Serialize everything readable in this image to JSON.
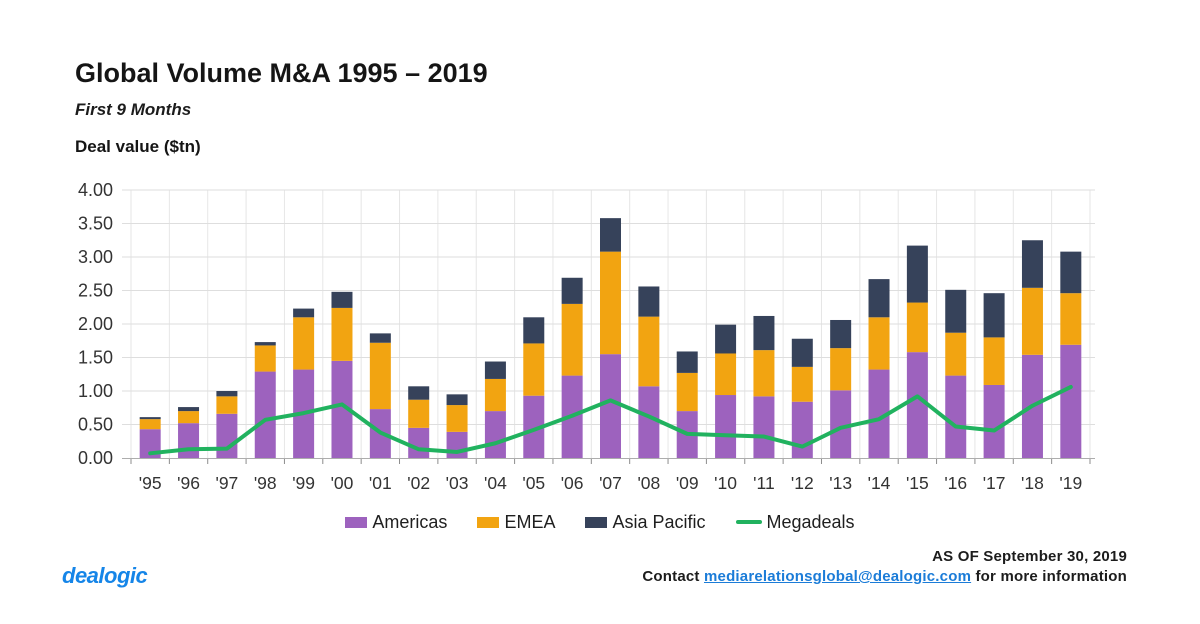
{
  "header": {
    "title": "Global Volume M&A 1995 – 2019",
    "subtitle": "First 9 Months",
    "axis_caption": "Deal value ($tn)"
  },
  "chart_data": {
    "type": "bar",
    "stacked": true,
    "title": "Global Volume M&A 1995 – 2019",
    "subtitle": "First 9 Months",
    "ylabel": "Deal value ($tn)",
    "xlabel": "",
    "ylim": [
      0,
      4
    ],
    "ytick_step": 0.5,
    "ytick_labels": [
      "0.00",
      "0.50",
      "1.00",
      "1.50",
      "2.00",
      "2.50",
      "3.00",
      "3.50",
      "4.00"
    ],
    "grid": true,
    "legend_position": "bottom",
    "categories": [
      "'95",
      "'96",
      "'97",
      "'98",
      "'99",
      "'00",
      "'01",
      "'02",
      "'03",
      "'04",
      "'05",
      "'06",
      "'07",
      "'08",
      "'09",
      "'10",
      "'11",
      "'12",
      "'13",
      "'14",
      "'15",
      "'16",
      "'17",
      "'18",
      "'19"
    ],
    "series": [
      {
        "name": "Americas",
        "type": "bar",
        "color": "#9d62be",
        "values": [
          0.43,
          0.52,
          0.66,
          1.29,
          1.32,
          1.45,
          0.73,
          0.45,
          0.39,
          0.7,
          0.93,
          1.23,
          1.55,
          1.07,
          0.7,
          0.94,
          0.92,
          0.84,
          1.01,
          1.32,
          1.58,
          1.23,
          1.09,
          1.54,
          1.69
        ]
      },
      {
        "name": "EMEA",
        "type": "bar",
        "color": "#f2a411",
        "values": [
          0.15,
          0.18,
          0.26,
          0.39,
          0.78,
          0.79,
          0.99,
          0.42,
          0.4,
          0.48,
          0.78,
          1.07,
          1.53,
          1.04,
          0.57,
          0.62,
          0.69,
          0.52,
          0.63,
          0.78,
          0.74,
          0.64,
          0.71,
          1.0,
          0.77
        ]
      },
      {
        "name": "Asia Pacific",
        "type": "bar",
        "color": "#36425a",
        "values": [
          0.03,
          0.06,
          0.08,
          0.05,
          0.13,
          0.24,
          0.14,
          0.2,
          0.16,
          0.26,
          0.39,
          0.39,
          0.5,
          0.45,
          0.32,
          0.43,
          0.51,
          0.42,
          0.42,
          0.57,
          0.85,
          0.64,
          0.66,
          0.71,
          0.62
        ]
      },
      {
        "name": "Megadeals",
        "type": "line",
        "color": "#21b25f",
        "values": [
          0.07,
          0.13,
          0.14,
          0.57,
          0.67,
          0.8,
          0.38,
          0.13,
          0.09,
          0.22,
          0.42,
          0.63,
          0.86,
          0.62,
          0.36,
          0.34,
          0.32,
          0.17,
          0.45,
          0.58,
          0.92,
          0.47,
          0.41,
          0.78,
          1.06
        ]
      }
    ]
  },
  "footer": {
    "as_of": "AS OF September 30, 2019",
    "contact_prefix": "Contact",
    "contact_email": "mediarelationsglobal@dealogic.com",
    "contact_suffix": "for more information",
    "logo": "dealogic"
  }
}
